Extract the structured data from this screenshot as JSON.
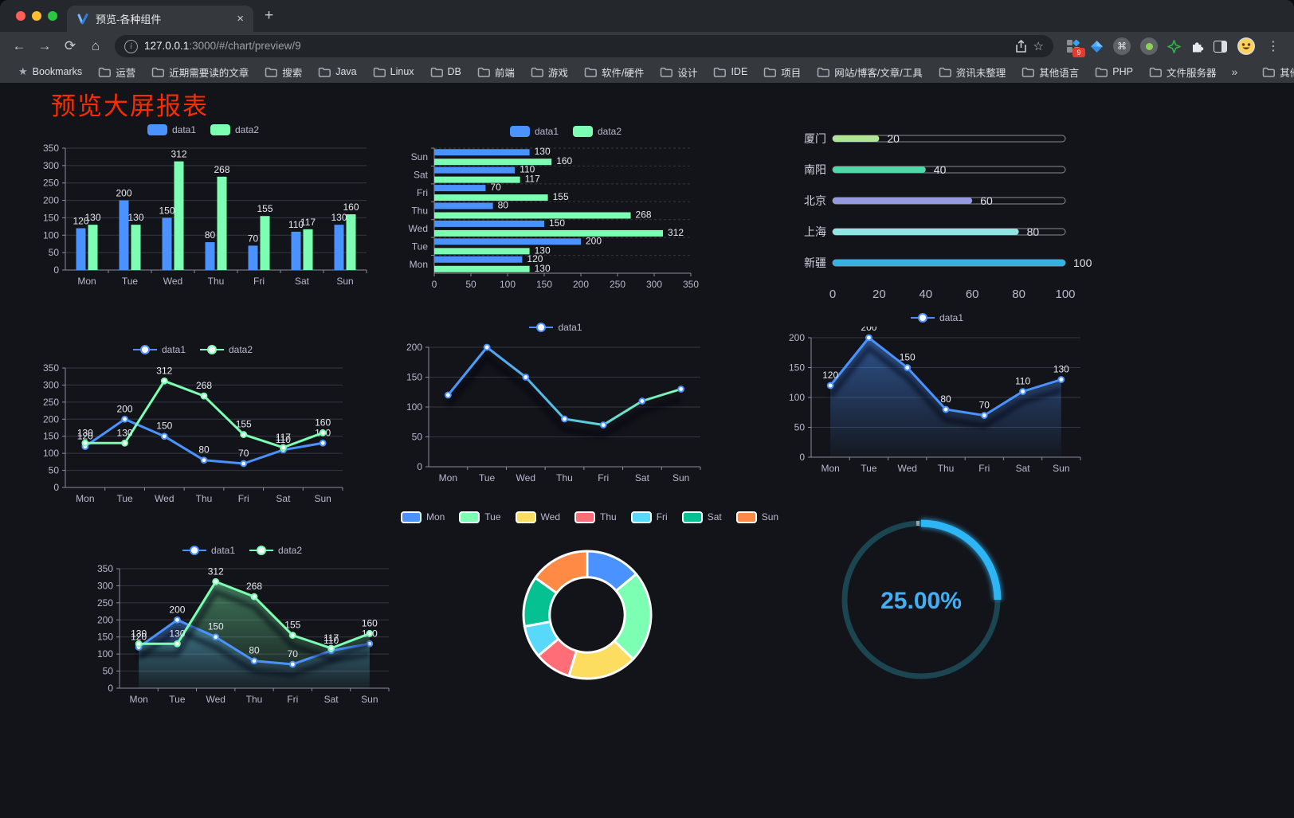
{
  "browser": {
    "tab_title": "预览-各种组件",
    "close_glyph": "×",
    "new_tab_glyph": "+",
    "back_glyph": "←",
    "forward_glyph": "→",
    "reload_glyph": "⟳",
    "home_glyph": "⌂",
    "info_glyph": "i",
    "url_host": "127.0.0.1",
    "url_rest": ":3000/#/chart/preview/9",
    "bookmark_star_glyph": "☆",
    "extension_badge": "9",
    "command_glyph": "⌘",
    "kebab_glyph": "⋮",
    "bookmarks_label": "Bookmarks",
    "bookmarks": [
      "运营",
      "近期需要读的文章",
      "搜索",
      "Java",
      "Linux",
      "DB",
      "前端",
      "游戏",
      "软件/硬件",
      "设计",
      "IDE",
      "项目",
      "网站/博客/文章/工具",
      "资讯未整理",
      "其他语言",
      "PHP",
      "文件服务器"
    ],
    "bookmarks_overflow": "»",
    "other_bookmarks": "其他书签"
  },
  "page": {
    "title": "预览大屏报表",
    "title_color": "#fb2c00",
    "background": "#131419"
  },
  "chart_data": [
    {
      "type": "bar",
      "categories": [
        "Mon",
        "Tue",
        "Wed",
        "Thu",
        "Fri",
        "Sat",
        "Sun"
      ],
      "series": [
        {
          "name": "data1",
          "color": "#4992ff",
          "values": [
            120,
            200,
            150,
            80,
            70,
            110,
            130
          ]
        },
        {
          "name": "data2",
          "color": "#7cffb2",
          "values": [
            130,
            130,
            312,
            268,
            155,
            117,
            160
          ]
        }
      ],
      "ylim": [
        0,
        350
      ],
      "ytick": 50,
      "legend_position": "top",
      "grid": true
    },
    {
      "type": "bar-horizontal",
      "categories": [
        "Mon",
        "Tue",
        "Wed",
        "Thu",
        "Fri",
        "Sat",
        "Sun"
      ],
      "series": [
        {
          "name": "data1",
          "color": "#4992ff",
          "values": [
            120,
            200,
            150,
            80,
            70,
            110,
            130
          ]
        },
        {
          "name": "data2",
          "color": "#7cffb2",
          "values": [
            130,
            130,
            312,
            268,
            155,
            117,
            160
          ]
        }
      ],
      "xlim": [
        0,
        350
      ],
      "xtick": 50,
      "legend_position": "top"
    },
    {
      "type": "progress-bars",
      "items": [
        {
          "label": "厦门",
          "value": 20,
          "color": "#b1e596"
        },
        {
          "label": "南阳",
          "value": 40,
          "color": "#4ed8a8"
        },
        {
          "label": "北京",
          "value": 60,
          "color": "#9599de"
        },
        {
          "label": "上海",
          "value": 80,
          "color": "#8fe6e2"
        },
        {
          "label": "新疆",
          "value": 100,
          "color": "#37b0e4"
        }
      ],
      "xlim": [
        0,
        100
      ],
      "ticks": [
        0,
        20,
        40,
        60,
        80,
        100
      ]
    },
    {
      "type": "line",
      "categories": [
        "Mon",
        "Tue",
        "Wed",
        "Thu",
        "Fri",
        "Sat",
        "Sun"
      ],
      "series": [
        {
          "name": "data1",
          "color": "#4992ff",
          "values": [
            120,
            200,
            150,
            80,
            70,
            110,
            130
          ]
        },
        {
          "name": "data2",
          "color": "#7cffb2",
          "values": [
            130,
            130,
            312,
            268,
            155,
            117,
            160
          ]
        }
      ],
      "ylim": [
        0,
        350
      ],
      "ytick": 50,
      "labels": true,
      "legend_position": "top"
    },
    {
      "type": "line-gradient",
      "categories": [
        "Mon",
        "Tue",
        "Wed",
        "Thu",
        "Fri",
        "Sat",
        "Sun"
      ],
      "series": [
        {
          "name": "data1",
          "gradient": [
            "#4992ff",
            "#5ac8e0",
            "#7cffb2"
          ],
          "marker_color": "#4992ff",
          "values": [
            120,
            200,
            150,
            80,
            70,
            110,
            130
          ]
        }
      ],
      "ylim": [
        0,
        200
      ],
      "ytick": 50,
      "labels": false,
      "legend_position": "top"
    },
    {
      "type": "area",
      "categories": [
        "Mon",
        "Tue",
        "Wed",
        "Thu",
        "Fri",
        "Sat",
        "Sun"
      ],
      "series": [
        {
          "name": "data1",
          "color": "#4992ff",
          "values": [
            120,
            200,
            150,
            80,
            70,
            110,
            130
          ]
        }
      ],
      "ylim": [
        0,
        200
      ],
      "ytick": 50,
      "labels": true,
      "legend_position": "top"
    },
    {
      "type": "line-area",
      "categories": [
        "Mon",
        "Tue",
        "Wed",
        "Thu",
        "Fri",
        "Sat",
        "Sun"
      ],
      "series": [
        {
          "name": "data1",
          "color": "#4992ff",
          "values": [
            120,
            200,
            150,
            80,
            70,
            110,
            130
          ]
        },
        {
          "name": "data2",
          "color": "#7cffb2",
          "values": [
            130,
            130,
            312,
            268,
            155,
            117,
            160
          ]
        }
      ],
      "ylim": [
        0,
        350
      ],
      "ytick": 50,
      "labels": true,
      "legend_position": "top"
    },
    {
      "type": "pie",
      "inner_radius_ratio": 0.59,
      "items": [
        {
          "label": "Mon",
          "value": 120,
          "color": "#4992ff"
        },
        {
          "label": "Tue",
          "value": 200,
          "color": "#7cffb2"
        },
        {
          "label": "Wed",
          "value": 150,
          "color": "#fddd60"
        },
        {
          "label": "Thu",
          "value": 80,
          "color": "#ff6e76"
        },
        {
          "label": "Fri",
          "value": 70,
          "color": "#58d9f9"
        },
        {
          "label": "Sat",
          "value": 110,
          "color": "#05c091"
        },
        {
          "label": "Sun",
          "value": 130,
          "color": "#ff8a45"
        }
      ],
      "legend_position": "top"
    },
    {
      "type": "gauge",
      "label": "25.00%",
      "percent": 25,
      "color": "#2db5f5",
      "track_color": "#1b4550",
      "text_color": "#42aff2"
    }
  ]
}
